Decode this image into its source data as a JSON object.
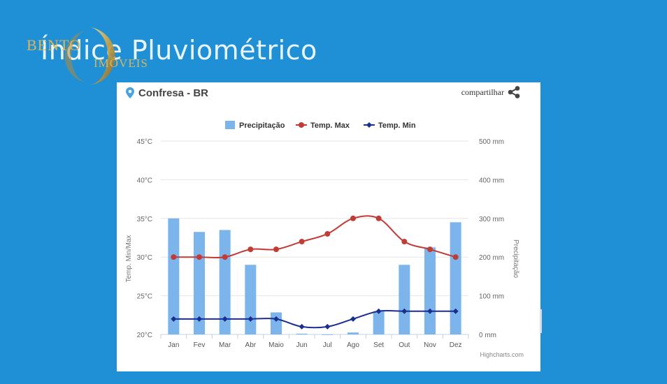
{
  "slide": {
    "title": "Índice Pluviométrico",
    "logo_text_1": "BENTO",
    "logo_text_2": "IMÓVEIS"
  },
  "card": {
    "location": "Confresa - BR",
    "share_label": "compartilhar",
    "icons": {
      "location": "location-pin-icon",
      "share": "share-icon"
    }
  },
  "chart_data": {
    "type": "bar",
    "categories": [
      "Jan",
      "Fev",
      "Mar",
      "Abr",
      "Maio",
      "Jun",
      "Jul",
      "Ago",
      "Set",
      "Out",
      "Nov",
      "Dez"
    ],
    "series": [
      {
        "name": "Precipitação",
        "type": "bar",
        "axis": "right",
        "color": "#7cb5ec",
        "values": [
          300,
          265,
          270,
          180,
          57,
          2,
          0,
          5,
          60,
          180,
          225,
          290
        ]
      },
      {
        "name": "Temp. Max",
        "type": "line",
        "axis": "left",
        "color": "#c23b35",
        "values": [
          30,
          30,
          30,
          31,
          31,
          32,
          33,
          35,
          35,
          32,
          31,
          30
        ]
      },
      {
        "name": "Temp. Min",
        "type": "line",
        "axis": "left",
        "color": "#1a2f8f",
        "values": [
          22,
          22,
          22,
          22,
          22,
          21,
          21,
          22,
          23,
          23,
          23,
          23
        ]
      }
    ],
    "ylabel_left": "Temp. Min/Max",
    "ylabel_right": "Precipitação",
    "ylim_left": [
      20,
      45
    ],
    "ylim_right": [
      0,
      500
    ],
    "left_ticks": [
      "20°C",
      "25°C",
      "30°C",
      "35°C",
      "40°C",
      "45°C"
    ],
    "right_ticks": [
      "0 mm",
      "100 mm",
      "200 mm",
      "300 mm",
      "400 mm",
      "500 mm"
    ],
    "grid": true,
    "legend_position": "top",
    "credits": "Highcharts.com"
  }
}
